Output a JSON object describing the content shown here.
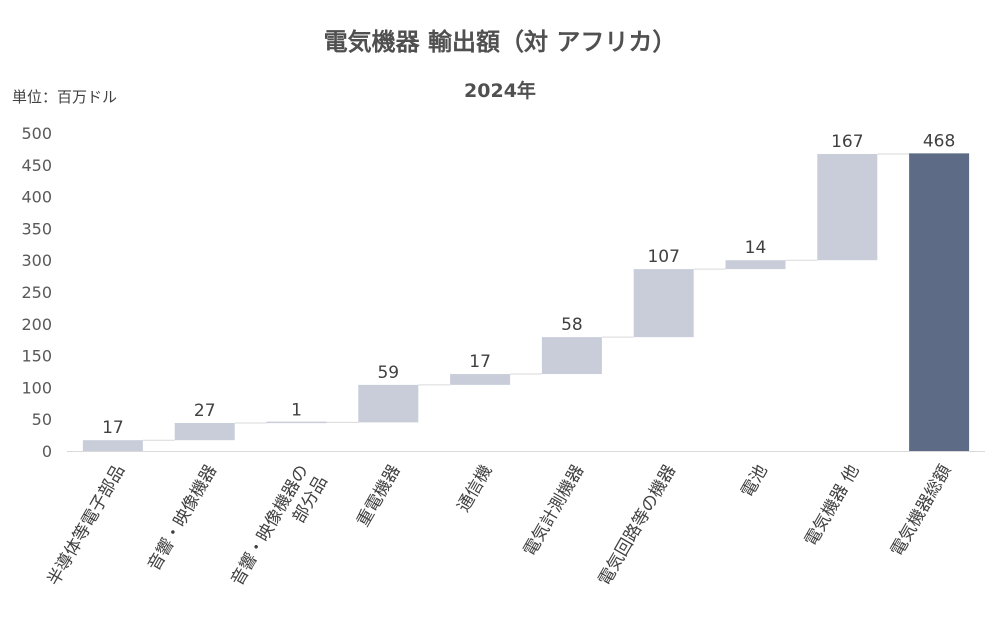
{
  "unit_label": "単位：百万ドル",
  "chart_data": {
    "type": "bar",
    "variant": "waterfall",
    "title": "電気機器 輸出額（対 アフリカ）",
    "subtitle": "2024年",
    "ylim": [
      0,
      500
    ],
    "yticks": [
      0,
      50,
      100,
      150,
      200,
      250,
      300,
      350,
      400,
      450,
      500
    ],
    "grid": false,
    "categories": [
      [
        "半導体等電子部品"
      ],
      [
        "音響・映像機器"
      ],
      [
        "音響・映像機器の",
        "部分品"
      ],
      [
        "重電機器"
      ],
      [
        "通信機"
      ],
      [
        "電気計測機器"
      ],
      [
        "電気回路等の機器"
      ],
      [
        "電池"
      ],
      [
        "電気機器 他"
      ],
      [
        "電気機器総額"
      ]
    ],
    "values": [
      17,
      27,
      1,
      59,
      17,
      58,
      107,
      14,
      167,
      468
    ],
    "value_labels": [
      "17",
      "27",
      "1",
      "59",
      "17",
      "58",
      "107",
      "14",
      "167",
      "468"
    ],
    "total_index": 9,
    "colors": {
      "increment": "#c8cdd9",
      "total": "#5d6b87",
      "connector": "#d9d9d9",
      "axis": "#d9d9d9"
    }
  }
}
